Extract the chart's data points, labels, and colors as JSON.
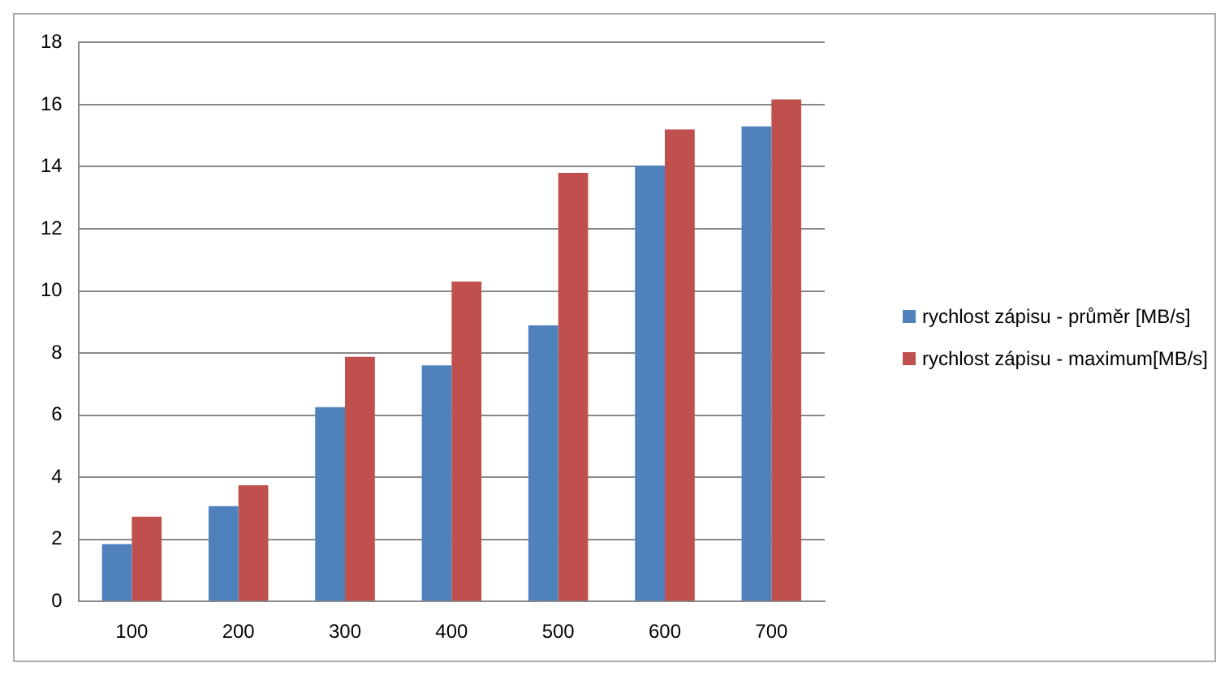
{
  "chart_data": {
    "type": "bar",
    "categories": [
      "100",
      "200",
      "300",
      "400",
      "500",
      "600",
      "700"
    ],
    "series": [
      {
        "name": "rychlost zápisu - průměr [MB/s]",
        "color": "#4f81bd",
        "values": [
          1.85,
          3.07,
          6.26,
          7.6,
          8.89,
          14.03,
          15.3
        ]
      },
      {
        "name": "rychlost zápisu - maximum[MB/s]",
        "color": "#c0504d",
        "values": [
          2.73,
          3.74,
          7.88,
          10.3,
          13.8,
          15.2,
          16.17
        ]
      }
    ],
    "ylim": [
      0,
      18
    ],
    "yticks": [
      0,
      2,
      4,
      6,
      8,
      10,
      12,
      14,
      16,
      18
    ],
    "grid": "y",
    "legend": "right"
  }
}
